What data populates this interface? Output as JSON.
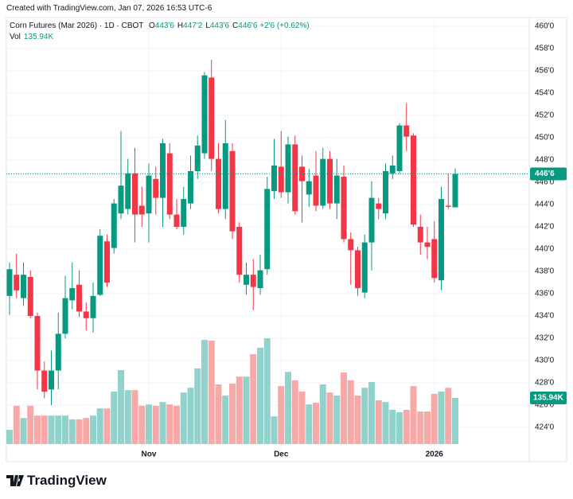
{
  "header": {
    "created": "Created with TradingView.com, Jan 07, 2026 16:53 UTC-6"
  },
  "footer": {
    "brand": "TradingView"
  },
  "chart_data": {
    "type": "candlestick",
    "legend": {
      "symbol": "Corn Futures (Mar 2026) · 1D · CBOT",
      "ohlc": [
        {
          "key": "O",
          "value": "443'6"
        },
        {
          "key": "H",
          "value": "447'2"
        },
        {
          "key": "L",
          "value": "443'6"
        },
        {
          "key": "C",
          "value": "446'6"
        }
      ],
      "change": "+2'6 (+0.62%)",
      "volume_key": "Vol",
      "volume_value": "135.94K"
    },
    "last_price_label": "446'6",
    "up_color": "#089981",
    "down_color": "#f23645",
    "volume_up_color": "#92d2cc",
    "volume_down_color": "#f7a9a7",
    "grid": true,
    "categories": [
      null,
      null,
      null,
      null,
      null,
      null,
      null,
      null,
      null,
      null,
      null,
      null,
      null,
      null,
      null,
      null,
      null,
      null,
      null,
      null,
      "Nov",
      null,
      null,
      null,
      null,
      null,
      null,
      null,
      null,
      null,
      null,
      null,
      null,
      null,
      null,
      null,
      null,
      null,
      null,
      "Dec",
      null,
      null,
      null,
      null,
      null,
      null,
      null,
      null,
      null,
      null,
      null,
      null,
      null,
      null,
      null,
      null,
      null,
      null,
      null,
      null,
      null,
      "2026",
      null,
      null,
      null
    ],
    "open": [
      435.8,
      437.7,
      435.6,
      437.5,
      434.0,
      429.1,
      427.4,
      429.1,
      432.4,
      435.4,
      436.8,
      434.4,
      433.8,
      435.9,
      440.7,
      440.1,
      443.2,
      443.6,
      446.8,
      443.9,
      443.2,
      446.3,
      444.6,
      448.6,
      443.1,
      442.0,
      444.1,
      447.0,
      448.6,
      455.4,
      448.1,
      443.6,
      448.8,
      442.0,
      436.8,
      437.7,
      436.5,
      438.2,
      445.2,
      447.4,
      445.1,
      449.4,
      447.4,
      444.9,
      446.6,
      443.9,
      448.1,
      444.1,
      446.5,
      440.9,
      439.9,
      436.1,
      440.6,
      444.1,
      443.2,
      446.8,
      447.0,
      451.1,
      450.2,
      442.0,
      440.6,
      440.9,
      437.2,
      443.9,
      443.75
    ],
    "high": [
      438.8,
      439.6,
      438.8,
      438.1,
      434.3,
      429.9,
      430.9,
      434.3,
      437.6,
      438.8,
      438.1,
      435.2,
      437.0,
      441.8,
      441.3,
      444.5,
      450.6,
      448.1,
      449.1,
      445.6,
      447.7,
      447.4,
      449.9,
      449.5,
      444.5,
      445.6,
      448.4,
      450.2,
      455.9,
      457.0,
      449.5,
      451.6,
      449.5,
      442.4,
      438.8,
      439.1,
      439.5,
      446.5,
      449.9,
      450.6,
      450.1,
      450.2,
      448.4,
      447.2,
      448.8,
      449.1,
      448.8,
      448.1,
      447.5,
      441.5,
      440.2,
      441.3,
      446.1,
      444.6,
      447.7,
      448.4,
      451.3,
      453.1,
      450.4,
      443.1,
      442.0,
      442.5,
      445.6,
      446.8,
      447.25
    ],
    "low": [
      434.1,
      435.6,
      434.9,
      433.8,
      427.4,
      426.6,
      426.0,
      427.4,
      432.0,
      434.6,
      433.9,
      432.7,
      432.5,
      435.8,
      436.6,
      439.6,
      442.7,
      443.1,
      440.6,
      442.0,
      440.6,
      443.1,
      442.0,
      442.7,
      441.8,
      441.3,
      443.6,
      446.3,
      448.1,
      447.0,
      443.2,
      442.7,
      440.9,
      437.0,
      435.9,
      434.5,
      435.9,
      437.7,
      444.5,
      444.6,
      444.1,
      443.1,
      442.4,
      443.8,
      443.4,
      443.6,
      443.6,
      442.7,
      440.6,
      436.8,
      435.8,
      435.6,
      438.1,
      442.7,
      442.7,
      446.3,
      446.8,
      448.8,
      442.0,
      439.5,
      439.1,
      437.0,
      436.3,
      443.6,
      443.75
    ],
    "close": [
      438.2,
      436.3,
      437.7,
      434.0,
      429.1,
      427.2,
      429.1,
      432.4,
      435.6,
      436.5,
      434.4,
      433.8,
      435.8,
      441.2,
      437.0,
      444.1,
      445.7,
      446.8,
      443.1,
      443.1,
      446.6,
      444.6,
      449.5,
      443.1,
      442.0,
      444.5,
      447.0,
      449.3,
      455.6,
      448.1,
      443.6,
      449.5,
      441.6,
      437.7,
      437.7,
      436.6,
      438.1,
      445.4,
      447.5,
      445.1,
      449.4,
      443.4,
      446.1,
      446.1,
      443.9,
      448.1,
      444.1,
      446.6,
      440.9,
      439.9,
      436.5,
      440.6,
      444.6,
      443.6,
      447.0,
      447.5,
      451.1,
      450.1,
      442.2,
      440.6,
      440.2,
      437.4,
      444.5,
      443.8,
      446.75
    ],
    "volume": [
      42000,
      113000,
      77000,
      113000,
      84000,
      84000,
      84000,
      84000,
      84000,
      73000,
      73000,
      77000,
      84000,
      105000,
      105000,
      155000,
      218000,
      159000,
      159000,
      113000,
      117000,
      113000,
      124000,
      117000,
      113000,
      152000,
      166000,
      223000,
      307000,
      305000,
      176000,
      143000,
      178000,
      199000,
      199000,
      265000,
      284000,
      312000,
      82000,
      171000,
      213000,
      188000,
      155000,
      117000,
      122000,
      176000,
      152000,
      143000,
      211000,
      188000,
      143000,
      166000,
      183000,
      129000,
      124000,
      101000,
      94000,
      101000,
      171000,
      96000,
      96000,
      148000,
      155000,
      166000,
      135940
    ],
    "ylim": [
      421.07,
      460.79
    ],
    "yticks": [
      {
        "value": 424,
        "label": "424'0"
      },
      {
        "value": 426,
        "label": "426'0"
      },
      {
        "value": 428,
        "label": "428'0"
      },
      {
        "value": 430,
        "label": "430'0"
      },
      {
        "value": 432,
        "label": "432'0"
      },
      {
        "value": 434,
        "label": "434'0"
      },
      {
        "value": 436,
        "label": "436'0"
      },
      {
        "value": 438,
        "label": "438'0"
      },
      {
        "value": 440,
        "label": "440'0"
      },
      {
        "value": 442,
        "label": "442'0"
      },
      {
        "value": 444,
        "label": "444'0"
      },
      {
        "value": 446,
        "label": "446'0"
      },
      {
        "value": 448,
        "label": "448'0"
      },
      {
        "value": 450,
        "label": "450'0"
      },
      {
        "value": 452,
        "label": "452'0"
      },
      {
        "value": 454,
        "label": "454'0"
      },
      {
        "value": 456,
        "label": "456'0"
      },
      {
        "value": 458,
        "label": "458'0"
      },
      {
        "value": 460,
        "label": "460'0"
      }
    ]
  }
}
